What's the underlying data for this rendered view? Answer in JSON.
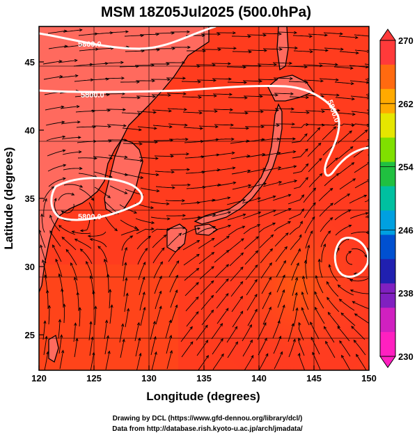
{
  "title": "MSM 18Z05Jul2025 (500.0hPa)",
  "map": {
    "x_axis": {
      "label": "Longitude (degrees)",
      "range": [
        120,
        150
      ],
      "ticks": [
        "120",
        "125",
        "130",
        "135",
        "140",
        "145",
        "150"
      ]
    },
    "y_axis": {
      "label": "Latitude  (degrees)",
      "range": [
        22.4,
        47.6
      ],
      "ticks": [
        "25",
        "30",
        "35",
        "40",
        "45"
      ]
    },
    "grid": true,
    "fill_color": "#ff3c1e",
    "land_color": "#ff6a5e",
    "contours": [
      {
        "label": "5800.0"
      },
      {
        "label": "5800.0"
      },
      {
        "label": "5800.0"
      },
      {
        "label": "5800.0"
      }
    ]
  },
  "colorbar": {
    "range": [
      230,
      270
    ],
    "labels": [
      "270",
      "262",
      "254",
      "246",
      "238",
      "230"
    ],
    "colors": [
      "#ff3a3a",
      "#ff6a10",
      "#ffaa00",
      "#e6e600",
      "#80e000",
      "#20c040",
      "#00c0a0",
      "#00a0e0",
      "#0050d0",
      "#2020b0",
      "#8020c0",
      "#d020c0",
      "#ff20c0"
    ]
  },
  "credits": {
    "line1": "Drawing by DCL (https://www.gfd-dennou.org/library/dcl/)",
    "line2": "Data from http://database.rish.kyoto-u.ac.jp/arch/jmadata/"
  }
}
